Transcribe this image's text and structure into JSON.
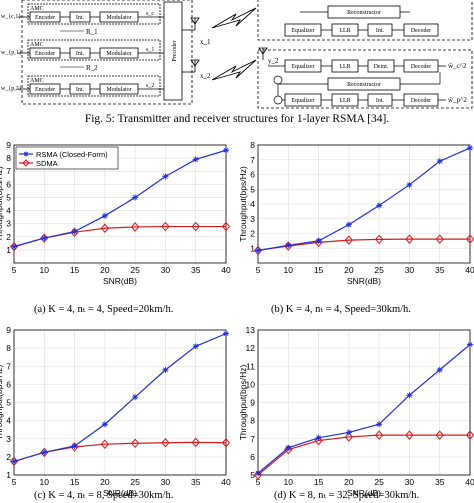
{
  "figure5": {
    "caption": "Fig. 5: Transmitter and receiver structures for 1-layer RSMA [34].",
    "transmitter_rows": [
      {
        "input": "w_{c,1}",
        "amc": "AMC",
        "encoder": "Encoder",
        "int": "Int.",
        "modulator": "Modulator",
        "output": "s_c"
      },
      {
        "input": "w_{p,1}",
        "amc": "AMC",
        "encoder": "Encoder",
        "int": "Int.",
        "modulator": "Modulator",
        "output": "s_1"
      },
      {
        "input": "w_{p,2}",
        "amc": "AMC",
        "encoder": "Encoder",
        "int": "Int.",
        "modulator": "Modulator",
        "output": "s_2"
      }
    ],
    "rate_labels": [
      "R_1",
      "R_2"
    ],
    "precoder_label": "Precoder",
    "antenna_labels": [
      "x_1",
      "x_2"
    ],
    "receiver_blocks": {
      "equalizer": "Equalizer",
      "llr": "LLR",
      "int": "Int.",
      "deint": "Deint.",
      "decoder": "Decoder",
      "reconstructor": "Reconstructor",
      "y2": "y_2"
    },
    "receiver_outputs": [
      "ŵ_c^2",
      "ŵ_p^2"
    ]
  },
  "icons": [
    "antenna-icon",
    "lightning-icon"
  ],
  "charts": {
    "colors": {
      "rsma": "#1f2fd6",
      "sdma": "#d41c1c"
    },
    "legend_labels": [
      "RSMA (Closed-Form)",
      "SDMA"
    ],
    "ylabel": "Throughput(bps/Hz)",
    "xlabel": "SNR(dB)",
    "captions": [
      "(a) K = 4, n_t = 4, Speed=20km/h.",
      "(b) K = 4, n_t = 4, Speed=30km/h.",
      "(c) K = 4, n_t = 8, Speed=30km/h.",
      "(d) K = 8, n_t = 32, Speed=30km/h."
    ]
  },
  "chart_data": [
    {
      "type": "line",
      "xlabel": "SNR(dB)",
      "ylabel": "Throughput(bps/Hz)",
      "xlim": [
        5,
        40
      ],
      "ylim": [
        0,
        9
      ],
      "x": [
        5,
        10,
        15,
        20,
        25,
        30,
        35,
        40
      ],
      "xticks": [
        5,
        10,
        15,
        20,
        25,
        30,
        35,
        40
      ],
      "yticks": [
        1,
        2,
        3,
        4,
        5,
        6,
        7,
        8,
        9
      ],
      "legend": "top-left",
      "grid": true,
      "series": [
        {
          "name": "RSMA (Closed-Form)",
          "values": [
            1.25,
            1.9,
            2.4,
            3.6,
            5.0,
            6.6,
            7.9,
            8.6
          ]
        },
        {
          "name": "SDMA",
          "values": [
            1.25,
            1.9,
            2.35,
            2.65,
            2.75,
            2.78,
            2.78,
            2.78
          ]
        }
      ]
    },
    {
      "type": "line",
      "xlabel": "SNR(dB)",
      "ylabel": "Throughput(bps/Hz)",
      "xlim": [
        5,
        40
      ],
      "ylim": [
        0,
        8
      ],
      "x": [
        5,
        10,
        15,
        20,
        25,
        30,
        35,
        40
      ],
      "xticks": [
        5,
        10,
        15,
        20,
        25,
        30,
        35,
        40
      ],
      "yticks": [
        1,
        2,
        3,
        4,
        5,
        6,
        7,
        8
      ],
      "grid": true,
      "series": [
        {
          "name": "RSMA (Closed-Form)",
          "values": [
            0.85,
            1.2,
            1.5,
            2.6,
            3.9,
            5.3,
            6.9,
            7.8
          ]
        },
        {
          "name": "SDMA",
          "values": [
            0.85,
            1.15,
            1.4,
            1.55,
            1.6,
            1.62,
            1.62,
            1.62
          ]
        }
      ]
    },
    {
      "type": "line",
      "xlabel": "SNR(dB)",
      "ylabel": "Throughput(bps/Hz)",
      "xlim": [
        5,
        40
      ],
      "ylim": [
        1,
        9
      ],
      "x": [
        5,
        10,
        15,
        20,
        25,
        30,
        35,
        40
      ],
      "xticks": [
        5,
        10,
        15,
        20,
        25,
        30,
        35,
        40
      ],
      "yticks": [
        1,
        2,
        3,
        4,
        5,
        6,
        7,
        8,
        9
      ],
      "grid": true,
      "series": [
        {
          "name": "RSMA (Closed-Form)",
          "values": [
            1.75,
            2.25,
            2.6,
            3.8,
            5.3,
            6.8,
            8.1,
            8.8
          ]
        },
        {
          "name": "SDMA",
          "values": [
            1.75,
            2.25,
            2.55,
            2.7,
            2.75,
            2.78,
            2.8,
            2.78
          ]
        }
      ]
    },
    {
      "type": "line",
      "xlabel": "SNR(dB)",
      "ylabel": "Throughput(bps/Hz)",
      "xlim": [
        5,
        40
      ],
      "ylim": [
        5,
        13
      ],
      "x": [
        5,
        10,
        15,
        20,
        25,
        30,
        35,
        40
      ],
      "xticks": [
        5,
        10,
        15,
        20,
        25,
        30,
        35,
        40
      ],
      "yticks": [
        5,
        6,
        7,
        8,
        9,
        10,
        11,
        12,
        13
      ],
      "grid": true,
      "series": [
        {
          "name": "RSMA (Closed-Form)",
          "values": [
            5.1,
            6.5,
            7.05,
            7.35,
            7.8,
            9.4,
            10.8,
            12.2
          ]
        },
        {
          "name": "SDMA",
          "values": [
            5.0,
            6.4,
            6.9,
            7.1,
            7.2,
            7.2,
            7.2,
            7.2
          ]
        }
      ]
    }
  ]
}
